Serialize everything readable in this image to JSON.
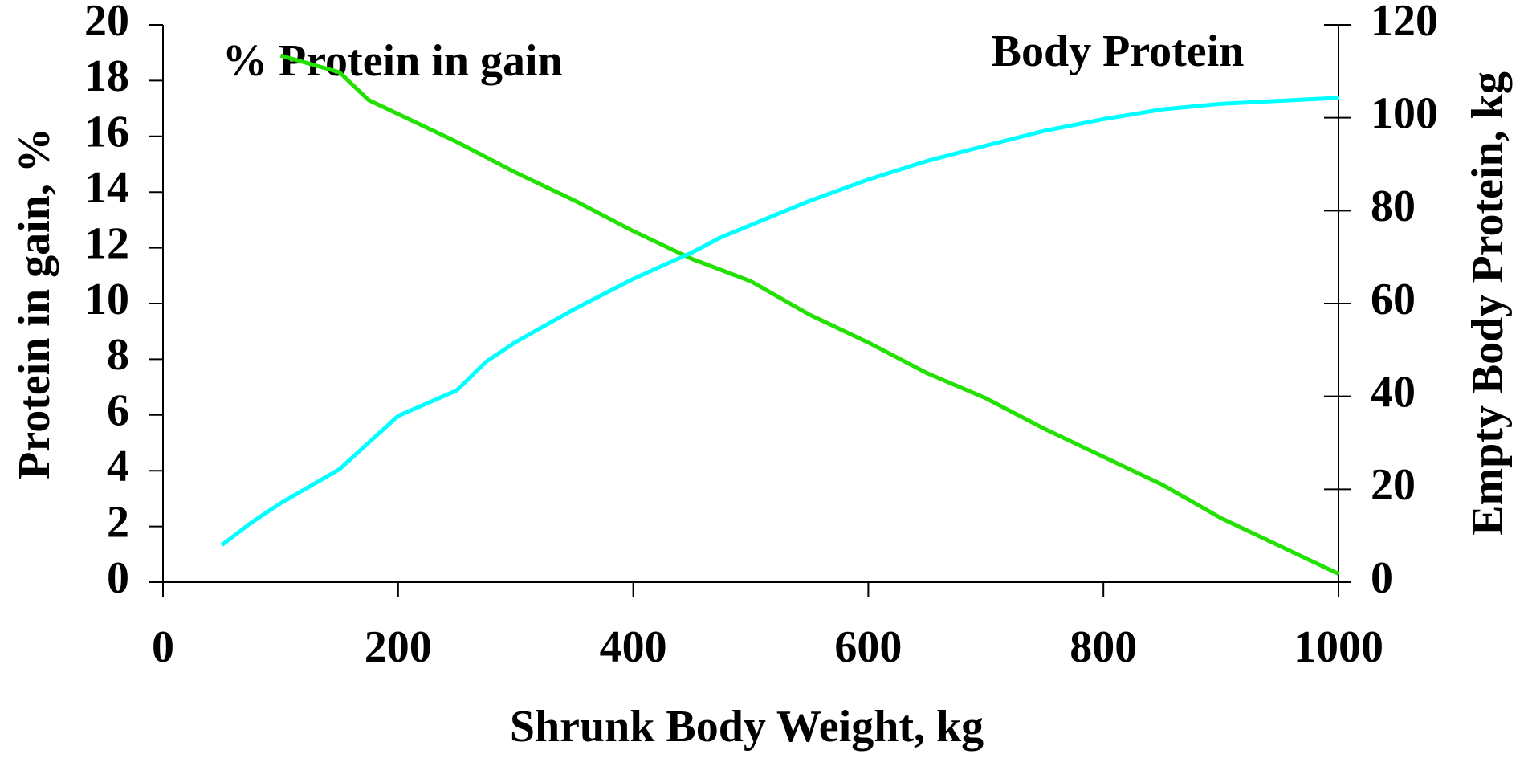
{
  "chart_data": {
    "type": "line",
    "xlabel": "Shrunk Body Weight, kg",
    "ylabel": "Protein in gain, %",
    "y2label": "Empty Body Protein, kg",
    "xlim": [
      0,
      1000
    ],
    "xticks": [
      0,
      200,
      400,
      600,
      800,
      1000
    ],
    "ylim": [
      0,
      20
    ],
    "yticks": [
      0,
      2,
      4,
      6,
      8,
      10,
      12,
      14,
      16,
      18,
      20
    ],
    "y2lim": [
      0,
      120
    ],
    "y2ticks": [
      0,
      20,
      40,
      60,
      80,
      100,
      120
    ],
    "series": [
      {
        "name": "% Protein in gain",
        "color": "#22e000",
        "axis": "y",
        "x": [
          100,
          150,
          175,
          200,
          250,
          300,
          350,
          400,
          450,
          500,
          550,
          600,
          650,
          700,
          750,
          800,
          850,
          900,
          950,
          1000
        ],
        "values": [
          18.9,
          18.3,
          17.3,
          16.8,
          15.8,
          14.7,
          13.7,
          12.6,
          11.6,
          10.8,
          9.6,
          8.6,
          7.5,
          6.6,
          5.5,
          4.5,
          3.5,
          2.3,
          1.3,
          0.3
        ]
      },
      {
        "name": "Body Protein",
        "color": "#00ffff",
        "axis": "y2",
        "x": [
          50,
          75,
          100,
          150,
          200,
          250,
          275,
          300,
          350,
          400,
          450,
          475,
          500,
          550,
          600,
          650,
          700,
          750,
          800,
          850,
          900,
          1000
        ],
        "values": [
          8,
          12.8,
          17,
          24.3,
          35.8,
          41.3,
          47.5,
          51.7,
          58.8,
          65.3,
          71,
          74.3,
          76.9,
          82.1,
          86.7,
          90.7,
          94,
          97.2,
          99.7,
          101.8,
          103,
          104.3
        ]
      }
    ]
  }
}
